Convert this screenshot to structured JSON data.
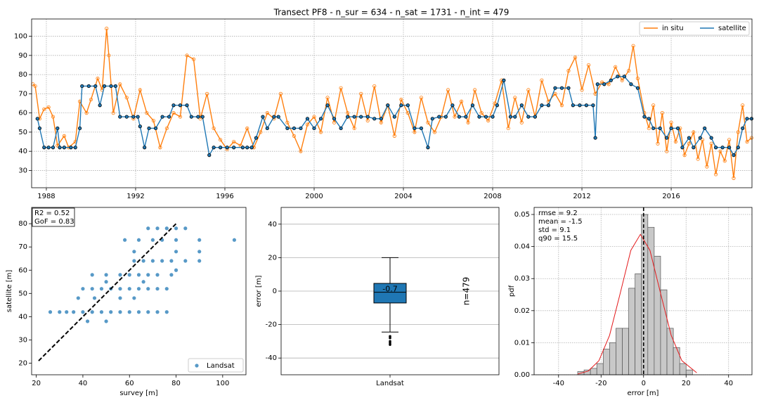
{
  "chart_data": [
    {
      "type": "line",
      "title": "Transect PF8 - n_sur = 634 - n_sat = 1731 - n_int = 479",
      "xlim": [
        1987.34,
        2019.62
      ],
      "ylim": [
        21,
        109
      ],
      "xticks": [
        1988,
        1992,
        1996,
        2000,
        2004,
        2008,
        2012,
        2016
      ],
      "yticks": [
        30,
        40,
        50,
        60,
        70,
        80,
        90,
        100
      ],
      "grid": "both",
      "grid_style": "dotted",
      "legend": "upper right",
      "series": [
        {
          "name": "in situ",
          "color": "#ff7f0e",
          "marker_face": "none",
          "marker_edge": "#ff7f0e",
          "x": [
            1987.4,
            1987.5,
            1987.7,
            1987.9,
            1988.1,
            1988.3,
            1988.5,
            1988.8,
            1989.0,
            1989.3,
            1989.5,
            1989.8,
            1990.0,
            1990.3,
            1990.5,
            1990.7,
            1990.8,
            1991.0,
            1991.3,
            1991.6,
            1991.9,
            1992.2,
            1992.5,
            1992.8,
            1993.1,
            1993.4,
            1993.7,
            1994.0,
            1994.3,
            1994.6,
            1994.9,
            1995.2,
            1995.5,
            1995.8,
            1996.1,
            1996.4,
            1996.7,
            1997.0,
            1997.3,
            1997.6,
            1997.9,
            1998.2,
            1998.5,
            1998.8,
            1999.1,
            1999.4,
            1999.7,
            2000.0,
            2000.3,
            2000.6,
            2000.9,
            2001.2,
            2001.5,
            2001.8,
            2002.1,
            2002.4,
            2002.7,
            2003.0,
            2003.3,
            2003.6,
            2003.9,
            2004.2,
            2004.5,
            2004.8,
            2005.1,
            2005.4,
            2005.7,
            2006.0,
            2006.3,
            2006.6,
            2006.9,
            2007.2,
            2007.5,
            2007.8,
            2008.1,
            2008.4,
            2008.7,
            2009.0,
            2009.3,
            2009.6,
            2009.9,
            2010.2,
            2010.5,
            2010.8,
            2011.1,
            2011.4,
            2011.7,
            2012.0,
            2012.3,
            2012.6,
            2012.9,
            2013.2,
            2013.5,
            2013.8,
            2014.1,
            2014.3,
            2014.5,
            2014.8,
            2015.0,
            2015.2,
            2015.4,
            2015.6,
            2015.8,
            2016.0,
            2016.2,
            2016.4,
            2016.6,
            2016.8,
            2017.0,
            2017.2,
            2017.4,
            2017.6,
            2017.8,
            2018.0,
            2018.2,
            2018.4,
            2018.6,
            2018.8,
            2019.0,
            2019.2,
            2019.4,
            2019.6
          ],
          "values": [
            75,
            74,
            57,
            62,
            63,
            58,
            43,
            48,
            42,
            45,
            66,
            60,
            67,
            78,
            72,
            104,
            90,
            60,
            75,
            68,
            57,
            72,
            60,
            56,
            42,
            52,
            60,
            58,
            90,
            88,
            57,
            70,
            52,
            46,
            41,
            45,
            43,
            52,
            42,
            50,
            60,
            57,
            70,
            55,
            48,
            40,
            54,
            58,
            50,
            68,
            55,
            73,
            60,
            52,
            70,
            56,
            74,
            55,
            64,
            48,
            67,
            60,
            50,
            68,
            55,
            50,
            58,
            72,
            58,
            66,
            55,
            72,
            60,
            56,
            65,
            77,
            52,
            68,
            55,
            72,
            58,
            77,
            66,
            70,
            64,
            82,
            89,
            72,
            85,
            70,
            76,
            75,
            84,
            77,
            82,
            95,
            78,
            60,
            52,
            64,
            44,
            60,
            40,
            55,
            45,
            52,
            38,
            44,
            50,
            36,
            46,
            32,
            44,
            28,
            40,
            35,
            46,
            26,
            50,
            64,
            45,
            47
          ]
        },
        {
          "name": "satellite",
          "color": "#1f77b4",
          "marker_face": "#1f77b4",
          "marker_edge": "#000000",
          "x": [
            1987.6,
            1987.7,
            1987.9,
            1988.1,
            1988.3,
            1988.5,
            1988.6,
            1988.8,
            1989.1,
            1989.3,
            1989.5,
            1989.6,
            1989.9,
            1990.2,
            1990.4,
            1990.6,
            1990.9,
            1991.1,
            1991.3,
            1991.6,
            1991.9,
            1992.1,
            1992.2,
            1992.4,
            1992.6,
            1992.9,
            1993.2,
            1993.5,
            1993.7,
            1994.0,
            1994.3,
            1994.5,
            1994.8,
            1995.0,
            1995.3,
            1995.5,
            1995.8,
            1996.1,
            1996.4,
            1996.8,
            1997.0,
            1997.2,
            1997.4,
            1997.7,
            1997.9,
            1998.2,
            1998.4,
            1998.8,
            1999.1,
            1999.4,
            1999.7,
            2000.0,
            2000.3,
            2000.6,
            2000.9,
            2001.2,
            2001.5,
            2001.8,
            2002.1,
            2002.4,
            2002.7,
            2003.0,
            2003.3,
            2003.6,
            2003.9,
            2004.2,
            2004.5,
            2004.8,
            2005.1,
            2005.3,
            2005.6,
            2005.9,
            2006.2,
            2006.5,
            2006.8,
            2007.1,
            2007.4,
            2007.7,
            2008.0,
            2008.2,
            2008.5,
            2008.8,
            2009.0,
            2009.3,
            2009.6,
            2009.9,
            2010.2,
            2010.5,
            2010.8,
            2011.1,
            2011.4,
            2011.6,
            2011.9,
            2012.2,
            2012.5,
            2012.6,
            2012.7,
            2013.0,
            2013.3,
            2013.6,
            2013.9,
            2014.2,
            2014.5,
            2014.8,
            2015.0,
            2015.2,
            2015.5,
            2015.8,
            2016.0,
            2016.3,
            2016.5,
            2016.8,
            2017.0,
            2017.3,
            2017.5,
            2017.8,
            2018.0,
            2018.3,
            2018.6,
            2018.8,
            2019.0,
            2019.2,
            2019.4,
            2019.6
          ],
          "values": [
            57,
            52,
            42,
            42,
            42,
            52,
            42,
            42,
            42,
            42,
            52,
            74,
            74,
            74,
            64,
            74,
            74,
            74,
            58,
            58,
            58,
            58,
            53,
            42,
            52,
            52,
            58,
            58,
            64,
            64,
            64,
            58,
            58,
            58,
            38,
            42,
            42,
            42,
            42,
            42,
            42,
            42,
            47,
            58,
            52,
            58,
            58,
            52,
            52,
            52,
            57,
            52,
            57,
            64,
            57,
            52,
            58,
            58,
            58,
            58,
            57,
            57,
            64,
            58,
            64,
            64,
            52,
            52,
            42,
            57,
            58,
            58,
            64,
            58,
            58,
            64,
            58,
            58,
            58,
            64,
            77,
            58,
            58,
            64,
            58,
            58,
            64,
            64,
            73,
            73,
            73,
            64,
            64,
            64,
            64,
            47,
            75,
            75,
            77,
            79,
            79,
            75,
            73,
            58,
            57,
            52,
            52,
            47,
            52,
            52,
            42,
            47,
            42,
            47,
            52,
            47,
            42,
            42,
            42,
            38,
            42,
            52,
            57,
            57
          ]
        }
      ]
    },
    {
      "type": "scatter",
      "xlabel": "survey [m]",
      "ylabel": "satellite [m]",
      "xlim": [
        18,
        110
      ],
      "ylim": [
        15,
        87
      ],
      "xticks": [
        20,
        40,
        60,
        80,
        100
      ],
      "yticks": [
        20,
        30,
        40,
        50,
        60,
        70,
        80
      ],
      "grid": "none",
      "legend": "lower right",
      "annotation": [
        "R2 = 0.52",
        "GoF = 0.83"
      ],
      "reference_line": {
        "x": [
          21,
          80
        ],
        "values": [
          21,
          80
        ],
        "color": "#000000"
      },
      "series": [
        {
          "name": "Landsat",
          "color": "#1f77b4",
          "x": [
            26,
            30,
            33,
            36,
            40,
            44,
            48,
            52,
            56,
            60,
            64,
            68,
            72,
            76,
            40,
            44,
            48,
            52,
            56,
            60,
            64,
            68,
            72,
            76,
            44,
            50,
            56,
            60,
            64,
            68,
            72,
            78,
            62,
            66,
            70,
            74,
            78,
            84,
            90,
            58,
            64,
            70,
            74,
            80,
            90,
            105,
            68,
            72,
            76,
            80,
            84,
            38,
            45,
            56,
            62,
            42,
            50,
            62,
            80,
            90,
            80,
            50,
            66
          ],
          "values": [
            42,
            42,
            42,
            42,
            42,
            42,
            42,
            42,
            42,
            42,
            42,
            42,
            42,
            42,
            52,
            52,
            52,
            52,
            52,
            52,
            52,
            52,
            52,
            52,
            58,
            58,
            58,
            58,
            58,
            58,
            58,
            58,
            64,
            64,
            64,
            64,
            64,
            64,
            64,
            73,
            73,
            73,
            73,
            73,
            73,
            73,
            78,
            78,
            78,
            78,
            78,
            48,
            48,
            48,
            48,
            38,
            38,
            68,
            68,
            68,
            60,
            55,
            55
          ]
        }
      ]
    },
    {
      "type": "box",
      "ylabel": "error [m]",
      "categories": [
        "Landsat"
      ],
      "ylim": [
        -50,
        50
      ],
      "yticks": [
        -40,
        -20,
        0,
        20,
        40
      ],
      "grid": "y",
      "grid_style": "solid",
      "annotation": [
        "n=479"
      ],
      "boxes": [
        {
          "median": -0.7,
          "q1": -7.1,
          "q3": 4.6,
          "whisker_low": -24.5,
          "whisker_high": 20,
          "outliers": [
            -27,
            -28,
            -30,
            -31,
            -32
          ],
          "color": "#1f77b4"
        }
      ]
    },
    {
      "type": "histogram",
      "xlabel": "error [m]",
      "ylabel": "pdf",
      "color": "#c8c8c8",
      "xlim": [
        -51.5,
        51
      ],
      "ylim": [
        0,
        0.0522
      ],
      "xticks": [
        -40,
        -20,
        0,
        20,
        40
      ],
      "yticks": [
        {
          "value": 0,
          "label": "0.00"
        },
        {
          "value": 0.01,
          "label": "0.01"
        },
        {
          "value": 0.02,
          "label": "0.02"
        },
        {
          "value": 0.03,
          "label": "0.03"
        },
        {
          "value": 0.04,
          "label": "0.04"
        },
        {
          "value": 0.05,
          "label": "0.05"
        }
      ],
      "grid": "both",
      "grid_style": "dotted",
      "annotation": [
        "rmse = 9.2",
        "mean = -1.5",
        "std = 9.1",
        "q90 = 15.5"
      ],
      "bins": [
        -31,
        -28,
        -25,
        -22,
        -19,
        -16,
        -13,
        -10,
        -7,
        -4,
        -1,
        2,
        5,
        8,
        11,
        14,
        17,
        20,
        23
      ],
      "values": [
        0.001,
        0.0015,
        0.002,
        0.0035,
        0.008,
        0.01,
        0.0145,
        0.0145,
        0.027,
        0.0315,
        0.05,
        0.046,
        0.037,
        0.0265,
        0.0145,
        0.0085,
        0.0035,
        0.0015
      ],
      "vline": 0,
      "curve": {
        "color": "#e41a1c",
        "x": [
          -31,
          -26,
          -21,
          -16,
          -11,
          -6,
          -1.5,
          3,
          8,
          13,
          18,
          25
        ],
        "values": [
          0.00023,
          0.00117,
          0.0044,
          0.0123,
          0.0254,
          0.0388,
          0.0438,
          0.0388,
          0.0254,
          0.0123,
          0.0044,
          0.00063
        ]
      }
    }
  ]
}
